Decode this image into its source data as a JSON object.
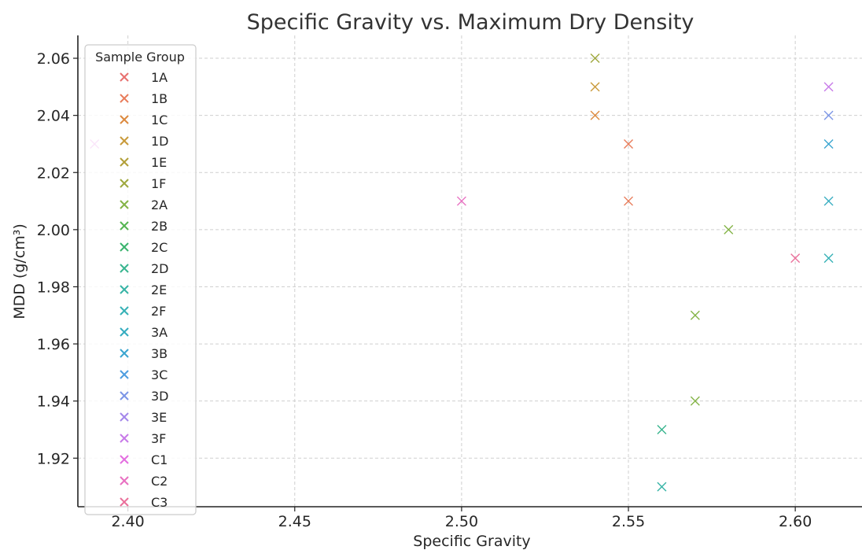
{
  "chart_data": {
    "type": "scatter",
    "title": "Specific Gravity vs. Maximum Dry Density",
    "xlabel": "Specific Gravity",
    "ylabel": "MDD (g/cm³)",
    "xlim": [
      2.385,
      2.62
    ],
    "ylim": [
      1.903,
      2.068
    ],
    "xticks": [
      "2.40",
      "2.45",
      "2.50",
      "2.55",
      "2.60"
    ],
    "yticks": [
      "1.92",
      "1.94",
      "1.96",
      "1.98",
      "2.00",
      "2.02",
      "2.04",
      "2.06"
    ],
    "grid": true,
    "legend": {
      "title": "Sample Group",
      "placement": "upper-left"
    },
    "marker": "x",
    "series": [
      {
        "name": "1A",
        "color": "#e8706f",
        "points": []
      },
      {
        "name": "1B",
        "color": "#e87c5a",
        "points": [
          [
            2.55,
            2.03
          ],
          [
            2.55,
            2.01
          ]
        ]
      },
      {
        "name": "1C",
        "color": "#dc8a3f",
        "points": [
          [
            2.54,
            2.04
          ]
        ]
      },
      {
        "name": "1D",
        "color": "#c99a3a",
        "points": [
          [
            2.54,
            2.05
          ]
        ]
      },
      {
        "name": "1E",
        "color": "#b29f38",
        "points": []
      },
      {
        "name": "1F",
        "color": "#9fa83e",
        "points": [
          [
            2.54,
            2.06
          ]
        ]
      },
      {
        "name": "2A",
        "color": "#84b447",
        "points": [
          [
            2.58,
            2.0
          ],
          [
            2.57,
            1.97
          ],
          [
            2.57,
            1.94
          ]
        ]
      },
      {
        "name": "2B",
        "color": "#55b552",
        "points": []
      },
      {
        "name": "2C",
        "color": "#3bb46e",
        "points": []
      },
      {
        "name": "2D",
        "color": "#39b58f",
        "points": [
          [
            2.56,
            1.93
          ]
        ]
      },
      {
        "name": "2E",
        "color": "#37b4a6",
        "points": [
          [
            2.56,
            1.91
          ]
        ]
      },
      {
        "name": "2F",
        "color": "#36b1b6",
        "points": [
          [
            2.61,
            1.99
          ]
        ]
      },
      {
        "name": "3A",
        "color": "#35acc0",
        "points": [
          [
            2.61,
            2.01
          ]
        ]
      },
      {
        "name": "3B",
        "color": "#3aa5d0",
        "points": [
          [
            2.61,
            2.03
          ]
        ]
      },
      {
        "name": "3C",
        "color": "#4d9de0",
        "points": []
      },
      {
        "name": "3D",
        "color": "#7b95e6",
        "points": [
          [
            2.61,
            2.04
          ]
        ]
      },
      {
        "name": "3E",
        "color": "#a487ea",
        "points": []
      },
      {
        "name": "3F",
        "color": "#c77ae8",
        "points": [
          [
            2.61,
            2.05
          ]
        ]
      },
      {
        "name": "C1",
        "color": "#e36ee0",
        "points": [
          [
            2.39,
            2.03
          ]
        ]
      },
      {
        "name": "C2",
        "color": "#e870c2",
        "points": [
          [
            2.5,
            2.01
          ]
        ]
      },
      {
        "name": "C3",
        "color": "#ea6f9a",
        "points": [
          [
            2.6,
            1.99
          ]
        ]
      }
    ]
  }
}
